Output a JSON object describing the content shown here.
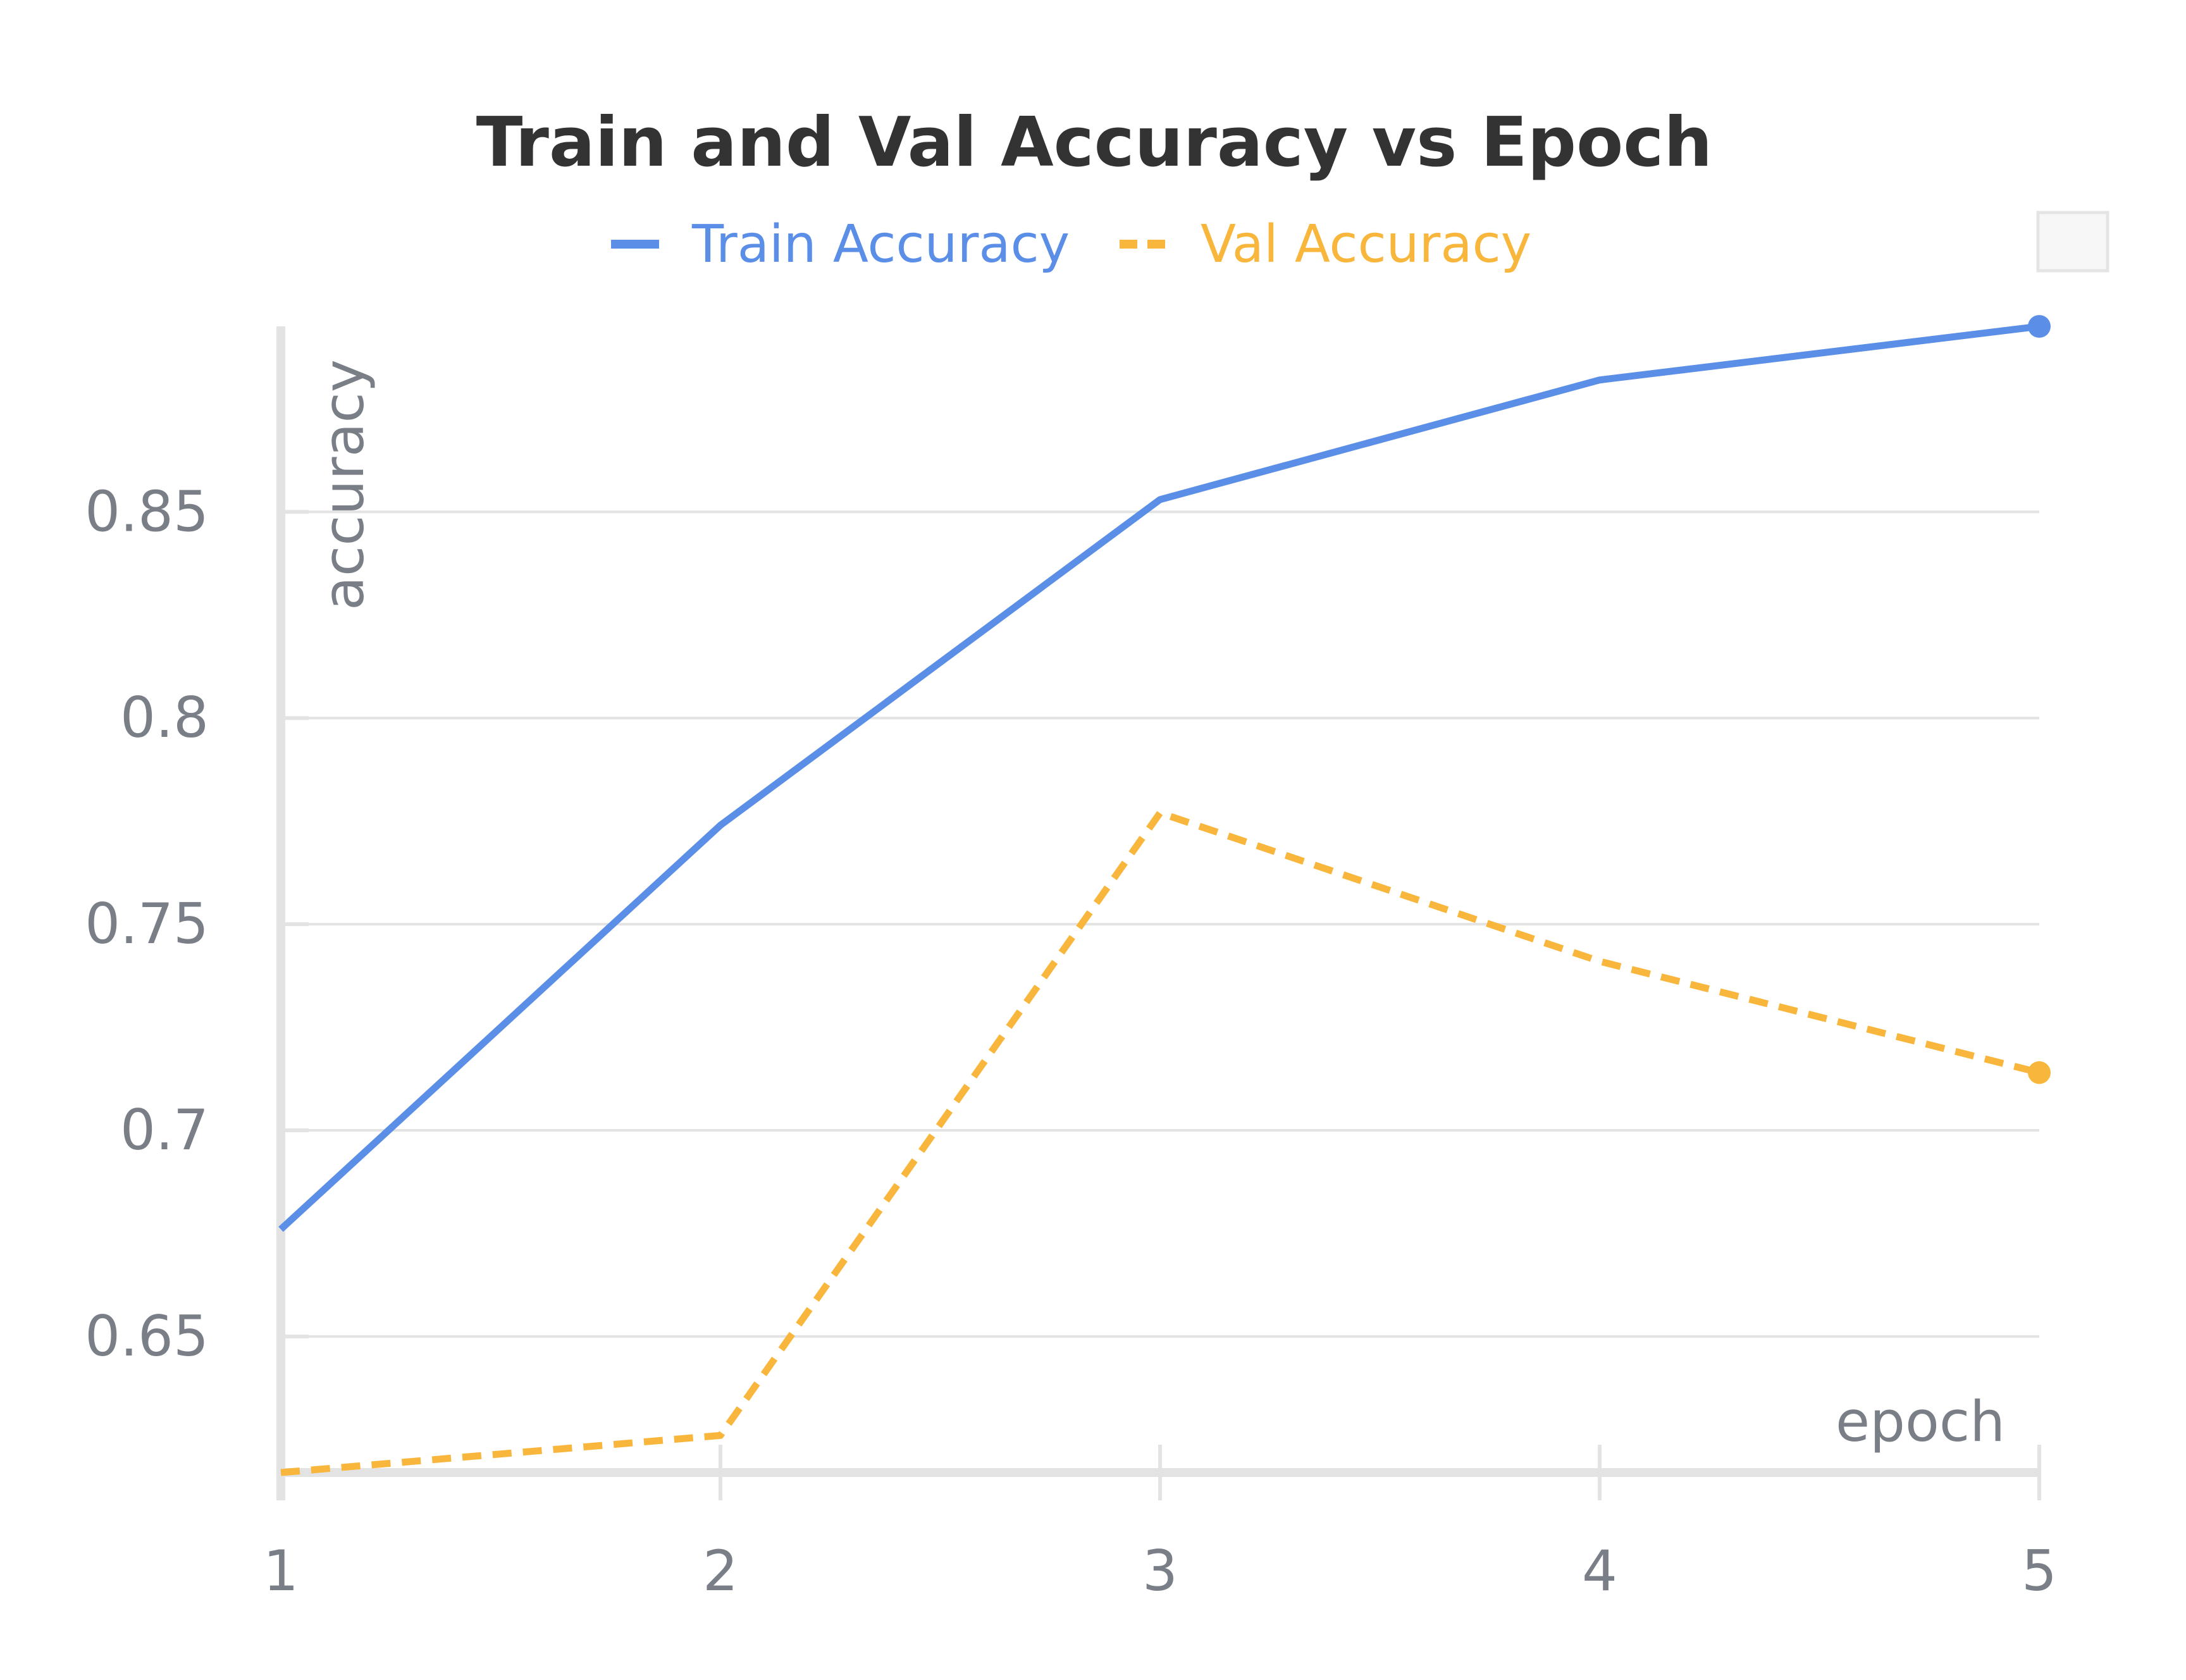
{
  "chart_data": {
    "type": "line",
    "title": "Train and Val Accuracy vs Epoch",
    "xlabel": "epoch",
    "ylabel": "accuracy",
    "x": [
      1,
      2,
      3,
      4,
      5
    ],
    "x_ticks": [
      "1",
      "2",
      "3",
      "4",
      "5"
    ],
    "y_ticks": [
      "0.65",
      "0.7",
      "0.75",
      "0.8",
      "0.85"
    ],
    "y_tick_values": [
      0.65,
      0.7,
      0.75,
      0.8,
      0.85
    ],
    "xlim": [
      1,
      5
    ],
    "ylim": [
      0.617,
      0.895
    ],
    "grid": true,
    "legend_position": "top-center",
    "series": [
      {
        "name": "Train Accuracy",
        "color": "#5b8ee6",
        "line_style": "solid",
        "values": [
          0.676,
          0.774,
          0.853,
          0.882,
          0.895
        ]
      },
      {
        "name": "Val Accuracy",
        "color": "#f8b73c",
        "line_style": "dashed",
        "values": [
          0.617,
          0.626,
          0.777,
          0.741,
          0.714
        ]
      }
    ]
  }
}
